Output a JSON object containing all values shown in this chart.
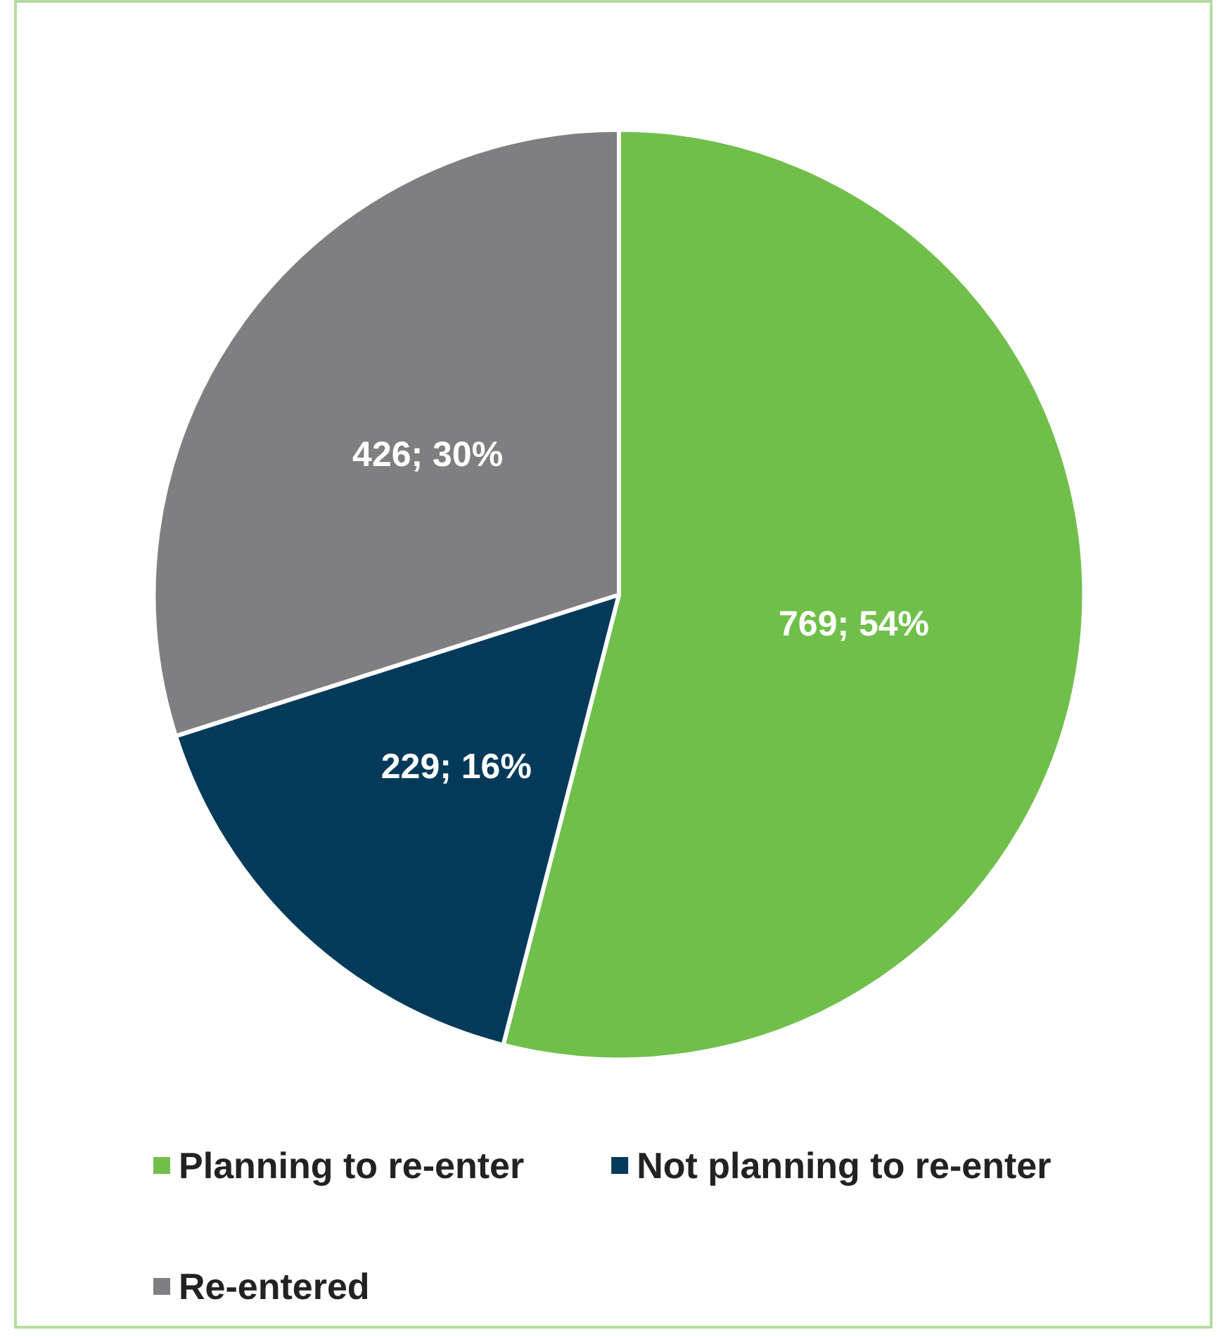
{
  "chart_data": {
    "type": "pie",
    "categories": [
      "Planning to re-enter",
      "Not planning to re-enter",
      "Re-entered"
    ],
    "values": [
      769,
      229,
      426
    ],
    "value_labels": [
      "769; 54%",
      "229; 16%",
      "426; 30%"
    ],
    "colors": [
      "#70bf4b",
      "#033a5a",
      "#7f7f81"
    ],
    "legend": "bottom"
  }
}
